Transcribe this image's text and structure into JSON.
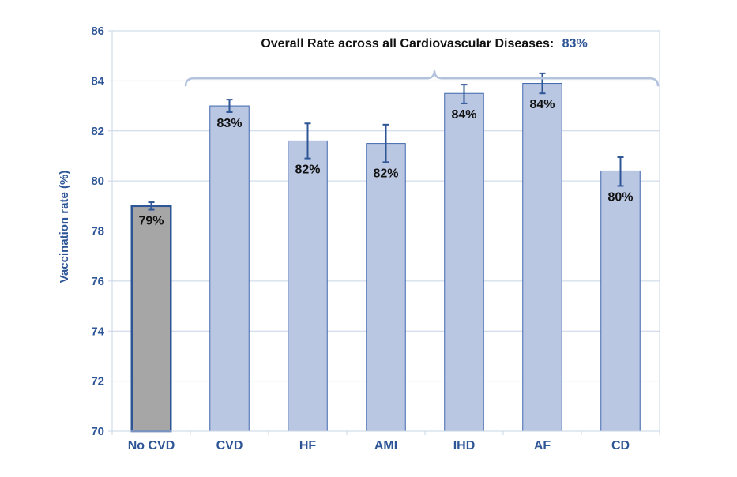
{
  "chart_data": {
    "type": "bar",
    "categories": [
      "No CVD",
      "CVD",
      "HF",
      "AMI",
      "IHD",
      "AF",
      "CD"
    ],
    "values": [
      79.0,
      83.0,
      81.6,
      81.5,
      83.5,
      83.9,
      80.4
    ],
    "error_low": [
      78.85,
      82.75,
      80.9,
      80.75,
      83.1,
      83.5,
      79.8
    ],
    "error_high": [
      79.15,
      83.25,
      82.3,
      82.25,
      83.85,
      84.3,
      80.95
    ],
    "data_labels": [
      "79%",
      "83%",
      "82%",
      "82%",
      "84%",
      "84%",
      "80%"
    ],
    "ylabel": "Vaccination rate (%)",
    "xlabel": "",
    "ylim": [
      70,
      86
    ],
    "yticks": [
      "70",
      "72",
      "74",
      "76",
      "78",
      "80",
      "82",
      "84",
      "86"
    ],
    "grid": true,
    "colors": {
      "reference_bar": "#a6a6a6",
      "reference_edge": "#2e5596",
      "bar": "#bac7e3",
      "bar_edge": "#3f66ad",
      "error_bar": "#2e5596",
      "axis_text": "#2e5596",
      "grid": "#c8d4e6",
      "bracket": "#b4c3dd"
    },
    "annotation": {
      "text": "Overall Rate across all Cardiovascular Diseases:",
      "value": "83%",
      "spans": "CVD to CD"
    }
  }
}
